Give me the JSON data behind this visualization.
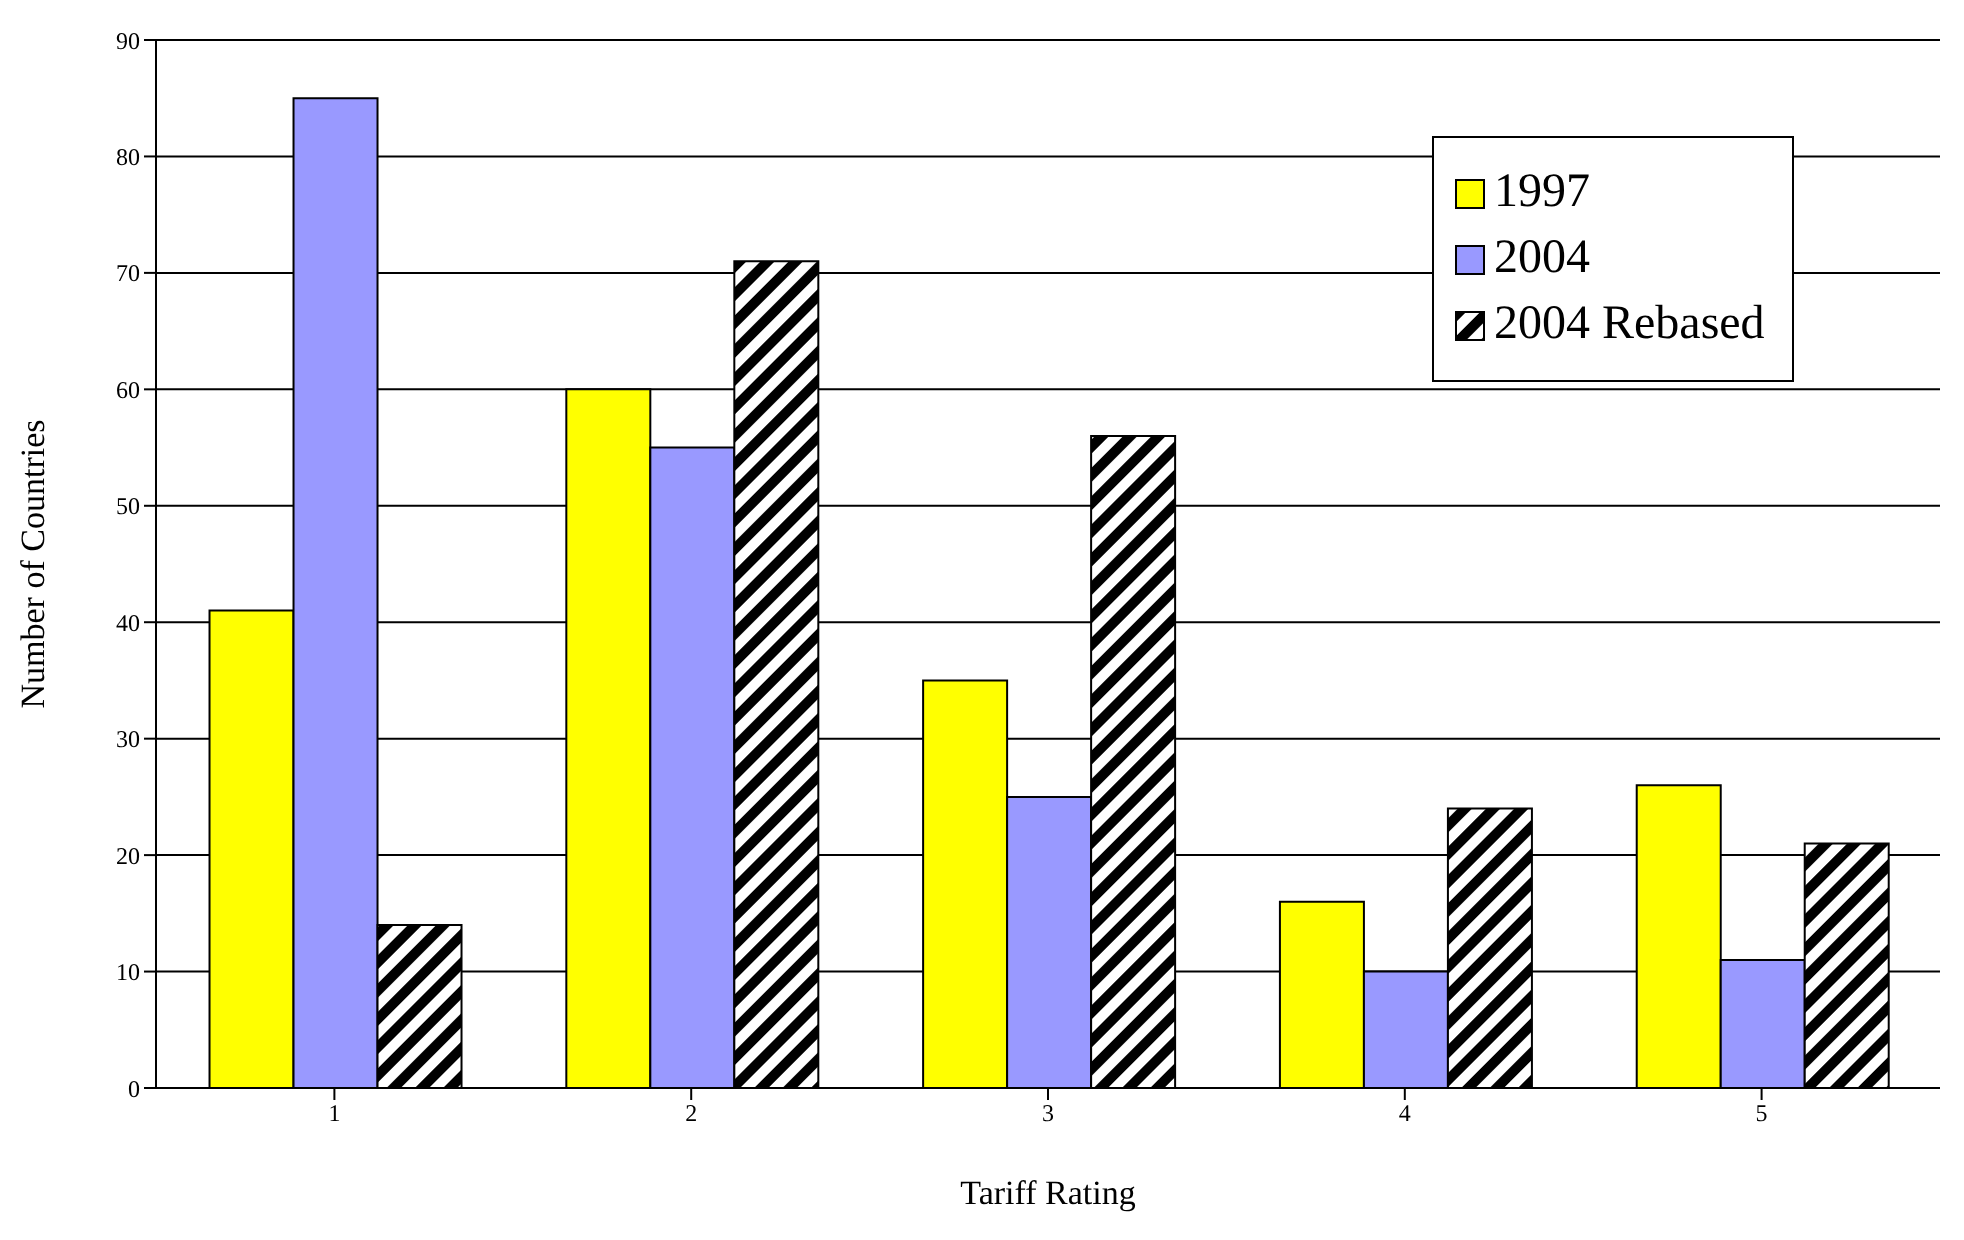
{
  "chart_data": {
    "type": "bar",
    "xlabel": "Tariff Rating",
    "ylabel": "Number of Countries",
    "categories": [
      "1",
      "2",
      "3",
      "4",
      "5"
    ],
    "series": [
      {
        "name": "1997",
        "color": "#ffff00",
        "values": [
          41,
          60,
          35,
          16,
          26
        ]
      },
      {
        "name": "2004",
        "color": "#9999ff",
        "values": [
          85,
          55,
          25,
          10,
          11
        ]
      },
      {
        "name": "2004 Rebased",
        "color": "#000000",
        "values": [
          14,
          71,
          56,
          24,
          21
        ]
      }
    ],
    "ylim": [
      0,
      90
    ],
    "yticks": [
      0,
      10,
      20,
      30,
      40,
      50,
      60,
      70,
      80,
      90
    ],
    "grid": "y",
    "legend": "top right"
  }
}
